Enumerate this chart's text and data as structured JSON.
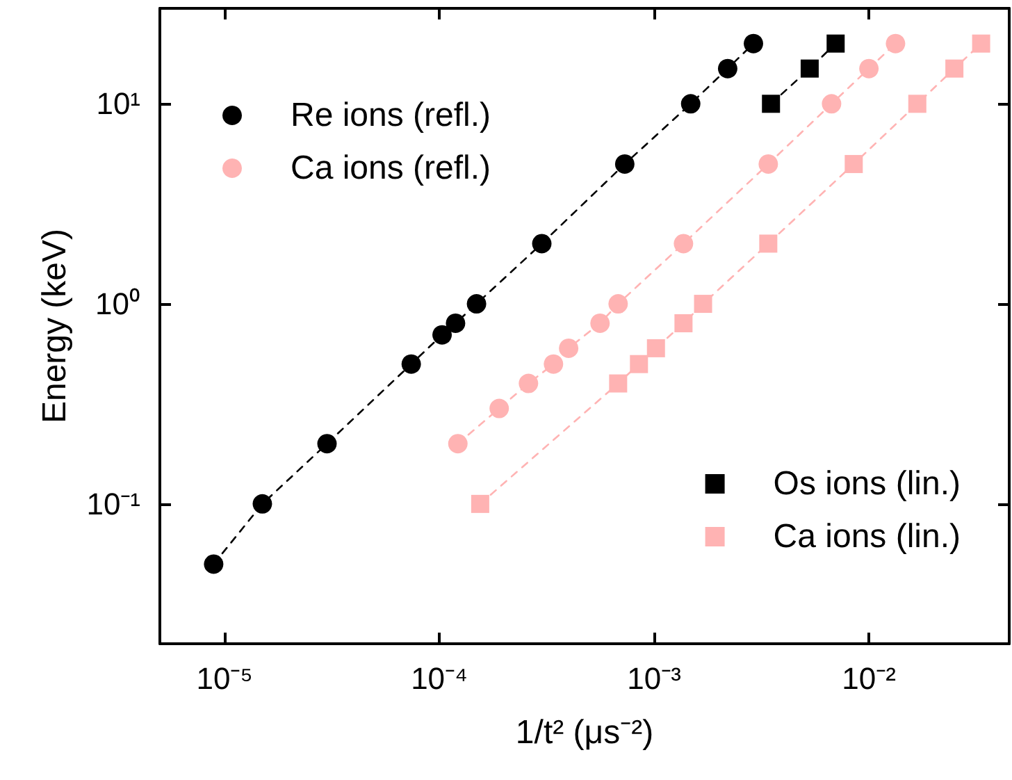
{
  "chart_data": {
    "type": "line",
    "xlabel": "1/t² (μs⁻²)",
    "ylabel": "Energy (keV)",
    "log": "xy",
    "grid": false,
    "line_style": "dashed",
    "legend": [
      "top left",
      "top left",
      "bottom right",
      "bottom right"
    ],
    "xlim": [
      5e-06,
      0.045
    ],
    "ylim": [
      0.02,
      30
    ],
    "xticks": [
      {
        "value": 1e-05,
        "label": "10⁻⁵"
      },
      {
        "value": 0.0001,
        "label": "10⁻⁴"
      },
      {
        "value": 0.001,
        "label": "10⁻³"
      },
      {
        "value": 0.01,
        "label": "10⁻²"
      }
    ],
    "yticks": [
      {
        "value": 0.1,
        "label": "10⁻¹"
      },
      {
        "value": 1,
        "label": "10⁰"
      },
      {
        "value": 10,
        "label": "10¹"
      }
    ],
    "series": [
      {
        "name": "Re ions (refl.)",
        "color": "#000000",
        "marker": "circle",
        "x": [
          8.9e-06,
          1.5e-05,
          3e-05,
          7.4e-05,
          0.000103,
          0.000119,
          0.000149,
          0.0003,
          0.00073,
          0.00148,
          0.0022,
          0.0029
        ],
        "values": [
          0.05,
          0.1,
          0.2,
          0.5,
          0.7,
          0.8,
          1,
          2,
          5,
          10,
          15,
          20
        ]
      },
      {
        "name": "Ca ions (refl.)",
        "color": "#ffb3b3",
        "marker": "circle",
        "x": [
          0.000122,
          0.00019,
          0.00026,
          0.00034,
          0.0004,
          0.00056,
          0.00068,
          0.00137,
          0.0034,
          0.0067,
          0.01,
          0.0133
        ],
        "values": [
          0.2,
          0.3,
          0.4,
          0.5,
          0.6,
          0.8,
          1,
          2,
          5,
          10,
          15,
          20
        ]
      },
      {
        "name": "Os ions (lin.)",
        "color": "#000000",
        "marker": "square",
        "x": [
          0.0035,
          0.0053,
          0.007
        ],
        "values": [
          10,
          15,
          20
        ]
      },
      {
        "name": "Ca ions (lin.)",
        "color": "#ffb3b3",
        "marker": "square",
        "x": [
          0.000155,
          0.00068,
          0.00085,
          0.00102,
          0.00137,
          0.00169,
          0.0034,
          0.0085,
          0.0168,
          0.025,
          0.0333
        ],
        "values": [
          0.1,
          0.4,
          0.5,
          0.6,
          0.8,
          1,
          2,
          5,
          10,
          15,
          20
        ]
      }
    ]
  }
}
